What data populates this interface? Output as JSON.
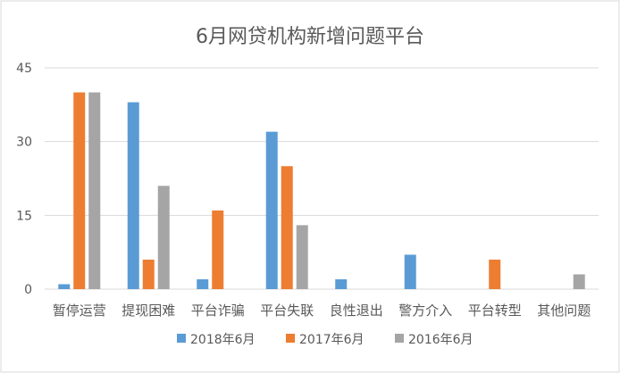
{
  "chart_data": {
    "type": "bar",
    "title": "6月网贷机构新增问题平台",
    "categories": [
      "暂停运营",
      "提现困难",
      "平台诈骗",
      "平台失联",
      "良性退出",
      "警方介入",
      "平台转型",
      "其他问题"
    ],
    "series": [
      {
        "name": "2018年6月",
        "color": "#5b9bd5",
        "values": [
          1,
          38,
          2,
          32,
          2,
          7,
          0,
          0
        ]
      },
      {
        "name": "2017年6月",
        "color": "#ed7d31",
        "values": [
          40,
          6,
          16,
          25,
          0,
          0,
          6,
          0
        ]
      },
      {
        "name": "2016年6月",
        "color": "#a5a5a5",
        "values": [
          40,
          21,
          0,
          13,
          0,
          0,
          0,
          3
        ]
      }
    ],
    "ylim": [
      0,
      45
    ],
    "yticks": [
      "0",
      "15",
      "30",
      "45"
    ],
    "grid": true,
    "legend_position": "bottom",
    "colors": {
      "grid": "#d9d9d9",
      "text": "#595959",
      "title": "#595959",
      "border": "#d9d9d9"
    }
  }
}
